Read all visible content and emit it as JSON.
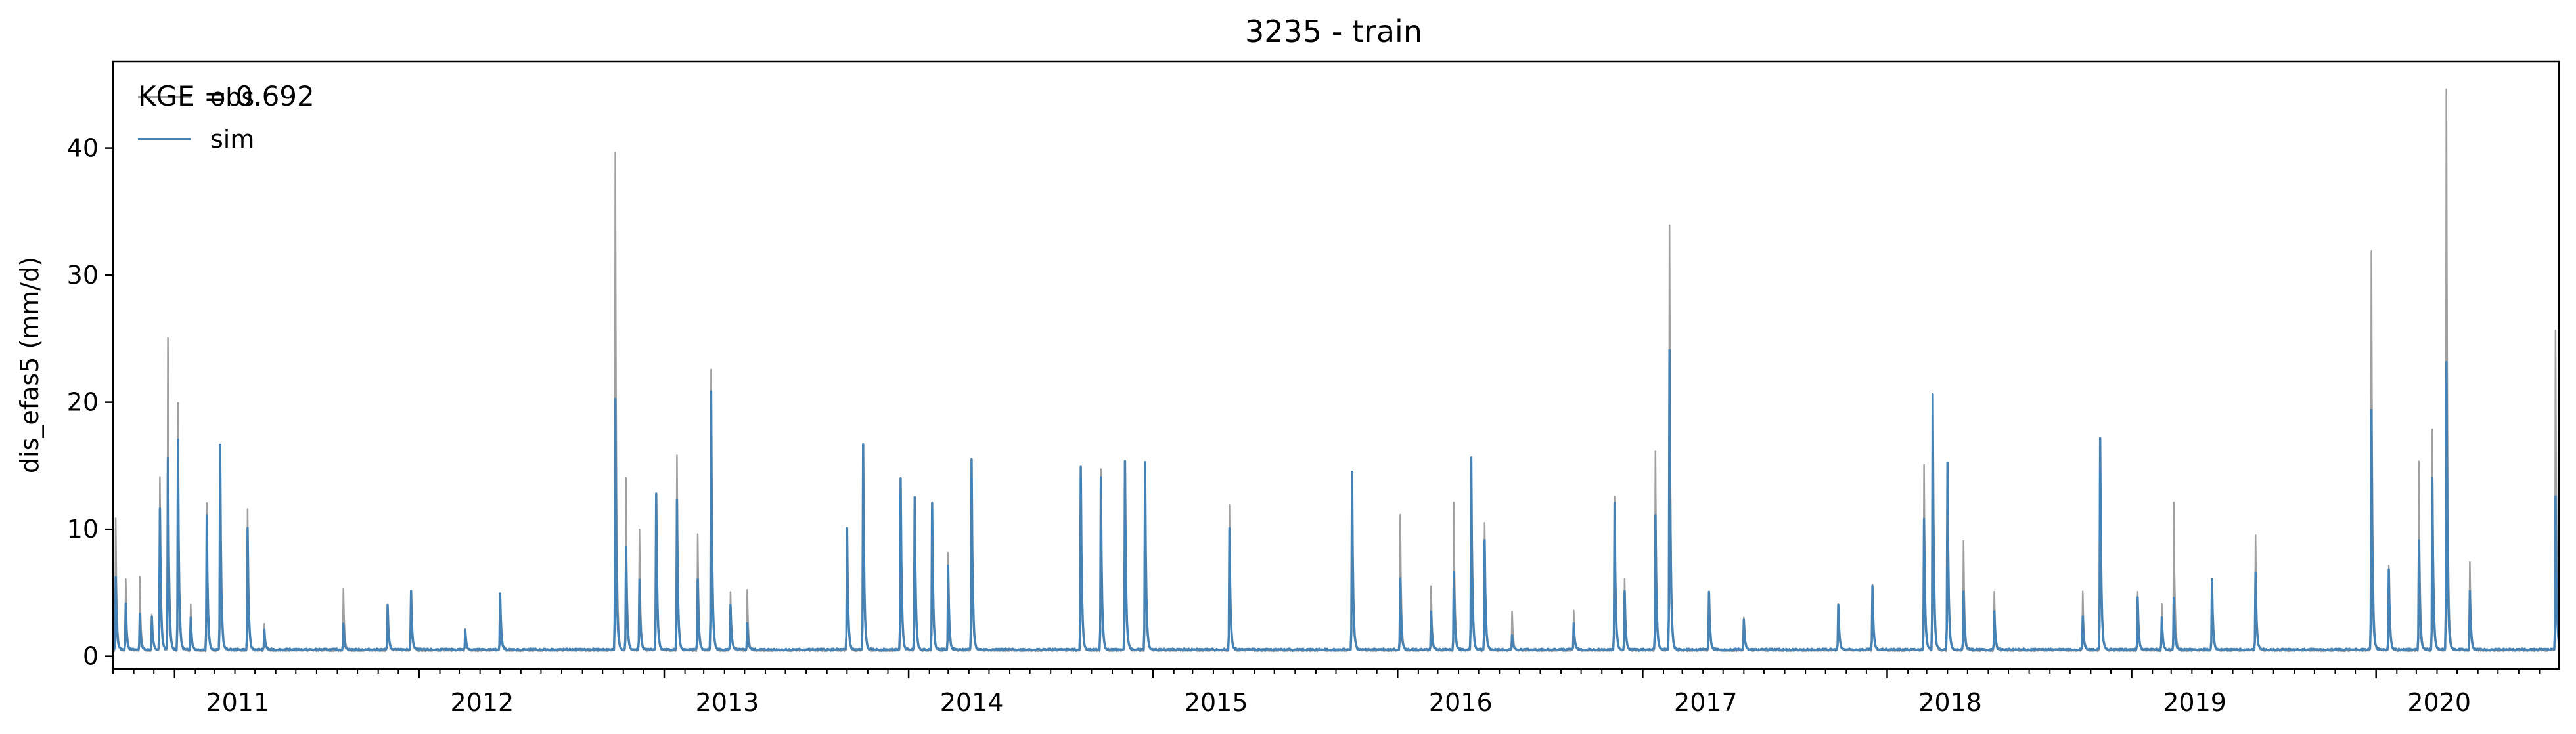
{
  "chart_data": {
    "type": "line",
    "title": "3235 - train",
    "xlabel": "",
    "ylabel": "dis_efas5 (mm/d)",
    "x_range": [
      "2010-10-01",
      "2020-09-30"
    ],
    "ylim": [
      -1,
      46.8
    ],
    "yticks": [
      0,
      10,
      20,
      30,
      40
    ],
    "xticks": [
      {
        "date": "2011-01-01",
        "label": "2011"
      },
      {
        "date": "2012-01-01",
        "label": "2012"
      },
      {
        "date": "2013-01-01",
        "label": "2013"
      },
      {
        "date": "2014-01-01",
        "label": "2014"
      },
      {
        "date": "2015-01-01",
        "label": "2015"
      },
      {
        "date": "2016-01-01",
        "label": "2016"
      },
      {
        "date": "2017-01-01",
        "label": "2017"
      },
      {
        "date": "2018-01-01",
        "label": "2018"
      },
      {
        "date": "2019-01-01",
        "label": "2019"
      },
      {
        "date": "2020-01-01",
        "label": "2020"
      }
    ],
    "grid": false,
    "legend_position": "top-left",
    "annotation": "KGE = 0.692",
    "series": [
      {
        "name": "obs",
        "color": "#a0a0a0",
        "baseline": 0.4,
        "peaks": [
          [
            "2010-10-05",
            10.8
          ],
          [
            "2010-10-20",
            6.0
          ],
          [
            "2010-11-10",
            6.2
          ],
          [
            "2010-11-28",
            3.2
          ],
          [
            "2010-12-10",
            14.0
          ],
          [
            "2010-12-22",
            25.0
          ],
          [
            "2011-01-06",
            19.8
          ],
          [
            "2011-01-25",
            4.0
          ],
          [
            "2011-02-18",
            12.0
          ],
          [
            "2011-03-10",
            16.0
          ],
          [
            "2011-04-20",
            11.5
          ],
          [
            "2011-05-15",
            2.5
          ],
          [
            "2011-09-10",
            5.3
          ],
          [
            "2011-11-15",
            3.5
          ],
          [
            "2011-12-20",
            4.8
          ],
          [
            "2012-03-10",
            2.0
          ],
          [
            "2012-05-01",
            4.5
          ],
          [
            "2012-10-20",
            39.5
          ],
          [
            "2012-11-05",
            14.0
          ],
          [
            "2012-11-25",
            10.0
          ],
          [
            "2012-12-20",
            11.0
          ],
          [
            "2013-01-20",
            15.8
          ],
          [
            "2013-02-20",
            9.5
          ],
          [
            "2013-03-12",
            22.5
          ],
          [
            "2013-04-10",
            5.0
          ],
          [
            "2013-05-05",
            5.2
          ],
          [
            "2013-10-01",
            8.0
          ],
          [
            "2013-10-25",
            16.0
          ],
          [
            "2013-12-20",
            13.5
          ],
          [
            "2014-01-10",
            12.2
          ],
          [
            "2014-02-05",
            12.0
          ],
          [
            "2014-03-01",
            8.0
          ],
          [
            "2014-04-05",
            15.2
          ],
          [
            "2014-09-15",
            14.5
          ],
          [
            "2014-10-15",
            14.7
          ],
          [
            "2014-11-20",
            15.0
          ],
          [
            "2014-12-20",
            15.0
          ],
          [
            "2015-04-25",
            11.8
          ],
          [
            "2015-10-25",
            14.2
          ],
          [
            "2016-01-05",
            11.0
          ],
          [
            "2016-02-20",
            5.5
          ],
          [
            "2016-03-25",
            12.0
          ],
          [
            "2016-04-20",
            15.5
          ],
          [
            "2016-05-10",
            10.5
          ],
          [
            "2016-06-20",
            3.5
          ],
          [
            "2016-09-20",
            3.5
          ],
          [
            "2016-11-20",
            12.5
          ],
          [
            "2016-12-05",
            6.0
          ],
          [
            "2017-01-20",
            16.0
          ],
          [
            "2017-02-10",
            33.8
          ],
          [
            "2017-04-10",
            5.0
          ],
          [
            "2017-06-01",
            3.0
          ],
          [
            "2017-10-20",
            4.0
          ],
          [
            "2017-12-10",
            5.5
          ],
          [
            "2018-02-25",
            15.0
          ],
          [
            "2018-03-10",
            20.5
          ],
          [
            "2018-04-01",
            15.0
          ],
          [
            "2018-04-25",
            9.0
          ],
          [
            "2018-06-10",
            5.0
          ],
          [
            "2018-10-20",
            5.0
          ],
          [
            "2018-11-15",
            17.0
          ],
          [
            "2019-01-10",
            5.0
          ],
          [
            "2019-02-15",
            4.0
          ],
          [
            "2019-03-05",
            12.0
          ],
          [
            "2019-05-01",
            6.0
          ],
          [
            "2019-07-05",
            9.5
          ],
          [
            "2019-12-25",
            31.8
          ],
          [
            "2020-01-20",
            7.0
          ],
          [
            "2020-03-05",
            15.2
          ],
          [
            "2020-03-25",
            17.8
          ],
          [
            "2020-04-15",
            44.6
          ],
          [
            "2020-05-20",
            7.3
          ],
          [
            "2020-09-25",
            25.6
          ]
        ]
      },
      {
        "name": "sim",
        "color": "#4682b4",
        "baseline": 0.45,
        "peaks": [
          [
            "2010-10-05",
            6.2
          ],
          [
            "2010-10-20",
            4.0
          ],
          [
            "2010-11-10",
            3.2
          ],
          [
            "2010-11-28",
            3.0
          ],
          [
            "2010-12-10",
            11.5
          ],
          [
            "2010-12-22",
            15.5
          ],
          [
            "2011-01-06",
            17.0
          ],
          [
            "2011-01-25",
            3.0
          ],
          [
            "2011-02-18",
            11.0
          ],
          [
            "2011-03-10",
            16.5
          ],
          [
            "2011-04-20",
            10.0
          ],
          [
            "2011-05-15",
            2.0
          ],
          [
            "2011-09-10",
            2.5
          ],
          [
            "2011-11-15",
            4.0
          ],
          [
            "2011-12-20",
            5.0
          ],
          [
            "2012-03-10",
            2.0
          ],
          [
            "2012-05-01",
            4.8
          ],
          [
            "2012-10-20",
            20.2
          ],
          [
            "2012-11-05",
            8.5
          ],
          [
            "2012-11-25",
            6.0
          ],
          [
            "2012-12-20",
            12.8
          ],
          [
            "2013-01-20",
            12.2
          ],
          [
            "2013-02-20",
            6.0
          ],
          [
            "2013-03-12",
            20.8
          ],
          [
            "2013-04-10",
            4.0
          ],
          [
            "2013-05-05",
            2.5
          ],
          [
            "2013-10-01",
            10.0
          ],
          [
            "2013-10-25",
            16.6
          ],
          [
            "2013-12-20",
            14.0
          ],
          [
            "2014-01-10",
            12.5
          ],
          [
            "2014-02-05",
            12.0
          ],
          [
            "2014-03-01",
            7.0
          ],
          [
            "2014-04-05",
            15.4
          ],
          [
            "2014-09-15",
            14.8
          ],
          [
            "2014-10-15",
            14.0
          ],
          [
            "2014-11-20",
            15.3
          ],
          [
            "2014-12-20",
            15.2
          ],
          [
            "2015-04-25",
            10.0
          ],
          [
            "2015-10-25",
            14.5
          ],
          [
            "2016-01-05",
            6.0
          ],
          [
            "2016-02-20",
            3.5
          ],
          [
            "2016-03-25",
            6.5
          ],
          [
            "2016-04-20",
            15.5
          ],
          [
            "2016-05-10",
            9.0
          ],
          [
            "2016-06-20",
            1.5
          ],
          [
            "2016-09-20",
            2.5
          ],
          [
            "2016-11-20",
            12.0
          ],
          [
            "2016-12-05",
            5.0
          ],
          [
            "2017-01-20",
            11.0
          ],
          [
            "2017-02-10",
            24.0
          ],
          [
            "2017-04-10",
            5.0
          ],
          [
            "2017-06-01",
            2.8
          ],
          [
            "2017-10-20",
            4.0
          ],
          [
            "2017-12-10",
            5.5
          ],
          [
            "2018-02-25",
            10.8
          ],
          [
            "2018-03-10",
            20.6
          ],
          [
            "2018-04-01",
            15.2
          ],
          [
            "2018-04-25",
            5.0
          ],
          [
            "2018-06-10",
            3.5
          ],
          [
            "2018-10-20",
            3.0
          ],
          [
            "2018-11-15",
            17.1
          ],
          [
            "2019-01-10",
            4.5
          ],
          [
            "2019-02-15",
            3.0
          ],
          [
            "2019-03-05",
            4.5
          ],
          [
            "2019-05-01",
            6.0
          ],
          [
            "2019-07-05",
            6.5
          ],
          [
            "2019-12-25",
            19.3
          ],
          [
            "2020-01-20",
            6.8
          ],
          [
            "2020-03-05",
            9.0
          ],
          [
            "2020-03-25",
            14.0
          ],
          [
            "2020-04-15",
            23.0
          ],
          [
            "2020-05-20",
            5.0
          ],
          [
            "2020-09-25",
            12.5
          ]
        ]
      }
    ]
  }
}
